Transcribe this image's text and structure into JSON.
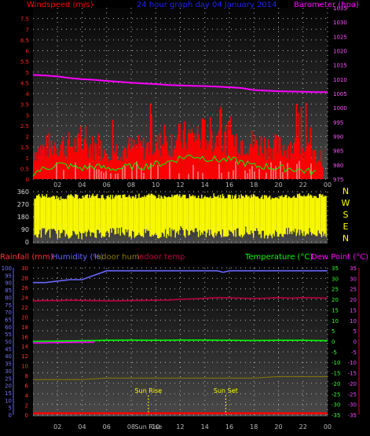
{
  "chart_data": [
    {
      "type": "line",
      "title": "24 hour graph day 04 January 2014",
      "left_axis": {
        "label": "Windspeed (m/s)",
        "min": 0,
        "max": 8,
        "ticks": [
          "0",
          "0.5",
          "1",
          "1.5",
          "2",
          "2.5",
          "3",
          "3.5",
          "4",
          "4.5",
          "5",
          "5.5",
          "6",
          "6.5",
          "7",
          "7.5"
        ]
      },
      "right_axis": {
        "label": "Barometer (hpa)",
        "min": 975,
        "max": 1035,
        "ticks": [
          "975",
          "980",
          "985",
          "990",
          "995",
          "1000",
          "1005",
          "1010",
          "1015",
          "1020",
          "1025",
          "1030",
          "1035"
        ]
      },
      "x_ticks": [
        "02",
        "04",
        "06",
        "08",
        "10",
        "12",
        "14",
        "16",
        "18",
        "20",
        "22",
        "00"
      ],
      "series": [
        {
          "name": "Windspeed",
          "color": "#ff0000",
          "note": "dense noisy bars mostly between 0.5 and 2.5 m/s, gusts to ~5 m/s",
          "hours": [
            0,
            1,
            2,
            3,
            4,
            5,
            6,
            7,
            8,
            9,
            10,
            11,
            12,
            13,
            14,
            15,
            16,
            17,
            18,
            19,
            20,
            21,
            22,
            23,
            24
          ],
          "values": [
            1.2,
            1.4,
            1.6,
            1.5,
            1.5,
            1.4,
            1.3,
            1.3,
            1.4,
            1.4,
            1.5,
            1.6,
            1.8,
            1.9,
            2.0,
            1.9,
            1.8,
            1.7,
            1.6,
            1.5,
            1.4,
            1.5,
            1.3,
            1.0,
            0.9
          ],
          "peaks": [
            2.5,
            2.8,
            4.6,
            3.2,
            3.1,
            3.0,
            2.8,
            3.2,
            2.9,
            3.3,
            3.8,
            3.4,
            4.9,
            3.6,
            3.4,
            3.9,
            3.7,
            3.5,
            3.0,
            2.9,
            3.3,
            3.1,
            4.6,
            2.5,
            2.0
          ]
        },
        {
          "name": "Wind average",
          "color": "#00ff00",
          "hours": [
            0,
            1,
            2,
            3,
            4,
            5,
            6,
            7,
            8,
            9,
            10,
            11,
            12,
            13,
            14,
            15,
            16,
            17,
            18,
            19,
            20,
            21,
            22,
            23,
            24
          ],
          "values": [
            0.3,
            0.5,
            0.7,
            0.6,
            0.5,
            0.6,
            0.5,
            0.5,
            0.6,
            0.6,
            0.7,
            0.8,
            1.0,
            1.1,
            1.0,
            0.9,
            0.9,
            0.8,
            0.6,
            0.6,
            0.5,
            0.5,
            0.4,
            0.3,
            0.2
          ]
        },
        {
          "name": "Barometer",
          "color": "#ff00ff",
          "axis": "right",
          "hours": [
            0,
            1,
            2,
            3,
            4,
            5,
            6,
            7,
            8,
            9,
            10,
            11,
            12,
            13,
            14,
            15,
            16,
            17,
            18,
            19,
            20,
            21,
            22,
            23,
            24
          ],
          "values": [
            1011.5,
            1011.3,
            1011,
            1010.4,
            1010,
            1009.8,
            1009.4,
            1009.1,
            1008.8,
            1008.5,
            1008.3,
            1008,
            1007.8,
            1007.7,
            1007.6,
            1007.4,
            1007.2,
            1006.9,
            1006.2,
            1006,
            1005.8,
            1005.7,
            1005.6,
            1005.5,
            1005.5
          ]
        }
      ]
    },
    {
      "type": "scatter",
      "left_axis": {
        "min": 0,
        "max": 360,
        "ticks": [
          "0",
          "90",
          "180",
          "270",
          "360"
        ]
      },
      "right_labels": [
        "N",
        "W",
        "S",
        "E",
        "N"
      ],
      "series": [
        {
          "name": "Wind direction",
          "color": "#ffff00",
          "hours": [
            0,
            1,
            2,
            3,
            4,
            5,
            6,
            7,
            8,
            9,
            10,
            11,
            12,
            13,
            14,
            15,
            16,
            17,
            18,
            19,
            20,
            21,
            22,
            23,
            24
          ],
          "low": [
            40,
            80,
            60,
            60,
            50,
            70,
            60,
            90,
            60,
            70,
            50,
            70,
            80,
            70,
            60,
            70,
            60,
            80,
            70,
            60,
            60,
            70,
            80,
            60,
            60
          ],
          "high": [
            340,
            350,
            330,
            345,
            340,
            350,
            335,
            345,
            340,
            350,
            345,
            335,
            350,
            340,
            345,
            350,
            340,
            345,
            350,
            335,
            340,
            345,
            350,
            345,
            345
          ]
        }
      ]
    },
    {
      "type": "line",
      "labels": {
        "rainfall": "Rainfall (mm)",
        "humidity": "Humidity (%)",
        "indoor_hum": "Indoor hum",
        "indoor_temp": "Indoor temp",
        "temperature": "Temperature (°C)",
        "dew_point": "Dew Point (°C)"
      },
      "axis_humidity": {
        "min": 0,
        "max": 100,
        "ticks": [
          "0",
          "5",
          "10",
          "15",
          "20",
          "25",
          "30",
          "35",
          "40",
          "45",
          "50",
          "55",
          "60",
          "65",
          "70",
          "75",
          "80",
          "85",
          "90",
          "95",
          "100"
        ]
      },
      "axis_rain": {
        "min": 0,
        "max": 30,
        "ticks": [
          "0",
          "2",
          "4",
          "6",
          "8",
          "10",
          "12",
          "14",
          "16",
          "18",
          "20",
          "22",
          "24",
          "26",
          "28",
          "30"
        ]
      },
      "axis_temp": {
        "min": -35,
        "max": 35,
        "ticks": [
          "-35",
          "-30",
          "-25",
          "-20",
          "-15",
          "-10",
          "-5",
          "0",
          "5",
          "10",
          "15",
          "20",
          "25",
          "30",
          "35"
        ]
      },
      "axis_dew": {
        "min": -35,
        "max": 35,
        "ticks": [
          "-35",
          "-30",
          "-25",
          "-20",
          "-15",
          "-10",
          "-5",
          "0",
          "5",
          "10",
          "15",
          "20",
          "25",
          "30",
          "35"
        ]
      },
      "x_ticks": [
        "02",
        "04",
        "06",
        "08",
        "Sun Rise",
        "10",
        "12",
        "14",
        "16",
        "18",
        "20",
        "22",
        "00"
      ],
      "annotations": [
        {
          "label": "Sun Rise",
          "hour": 9.4
        },
        {
          "label": "Sun Set",
          "hour": 15.7
        }
      ],
      "series": [
        {
          "name": "Humidity",
          "color": "#6666ff",
          "axis": "humidity",
          "hours": [
            0,
            1,
            2,
            3,
            4,
            5,
            6,
            7,
            8,
            9,
            10,
            11,
            12,
            13,
            14,
            15,
            15.5,
            16,
            17,
            18,
            19,
            20,
            21,
            22,
            23,
            24
          ],
          "values": [
            90,
            90,
            91,
            92,
            92,
            95,
            98,
            98,
            98,
            98,
            98,
            98,
            98,
            98,
            98,
            98,
            97,
            98,
            98,
            98,
            98,
            98,
            98,
            98,
            98,
            98
          ]
        },
        {
          "name": "Indoor temp",
          "color": "#c00040",
          "axis": "temp",
          "hours": [
            0,
            1,
            2,
            3,
            4,
            5,
            6,
            7,
            8,
            9,
            10,
            11,
            12,
            13,
            14,
            15,
            16,
            17,
            18,
            19,
            20,
            21,
            22,
            23,
            24
          ],
          "values": [
            19.2,
            19.5,
            19.4,
            19.6,
            19.5,
            19.4,
            19.3,
            19.3,
            19.5,
            19.5,
            19.6,
            19.7,
            20.0,
            20.2,
            20.5,
            20.8,
            20.7,
            20.6,
            20.4,
            20.6,
            20.8,
            20.6,
            20.8,
            20.7,
            20.6
          ]
        },
        {
          "name": "Temperature",
          "color": "#00ff00",
          "axis": "temp",
          "hours": [
            0,
            2,
            4,
            6,
            8,
            10,
            12,
            14,
            16,
            18,
            20,
            22,
            24
          ],
          "values": [
            0,
            0.1,
            0.3,
            0.5,
            0.6,
            0.5,
            0.6,
            0.6,
            0.5,
            0.4,
            0.5,
            0.5,
            0.3
          ]
        },
        {
          "name": "Dew point",
          "color": "#ff00ff",
          "axis": "temp",
          "hours": [
            0,
            1,
            2,
            3,
            4,
            5
          ],
          "values": [
            -0.8,
            -0.7,
            -0.6,
            -0.5,
            -0.4,
            -0.4
          ]
        },
        {
          "name": "Indoor hum",
          "color": "#8a7a00",
          "axis": "humidity",
          "hours": [
            0,
            2,
            4,
            6,
            8,
            10,
            12,
            14,
            16,
            18,
            20,
            22,
            24
          ],
          "values": [
            24,
            24,
            24,
            25,
            25,
            25,
            25,
            25,
            25,
            25,
            26,
            26,
            26
          ]
        },
        {
          "name": "Rainfall",
          "color": "#ff0000",
          "axis": "rain",
          "hours": [
            0,
            24
          ],
          "values": [
            0.3,
            0.3
          ]
        }
      ]
    }
  ]
}
